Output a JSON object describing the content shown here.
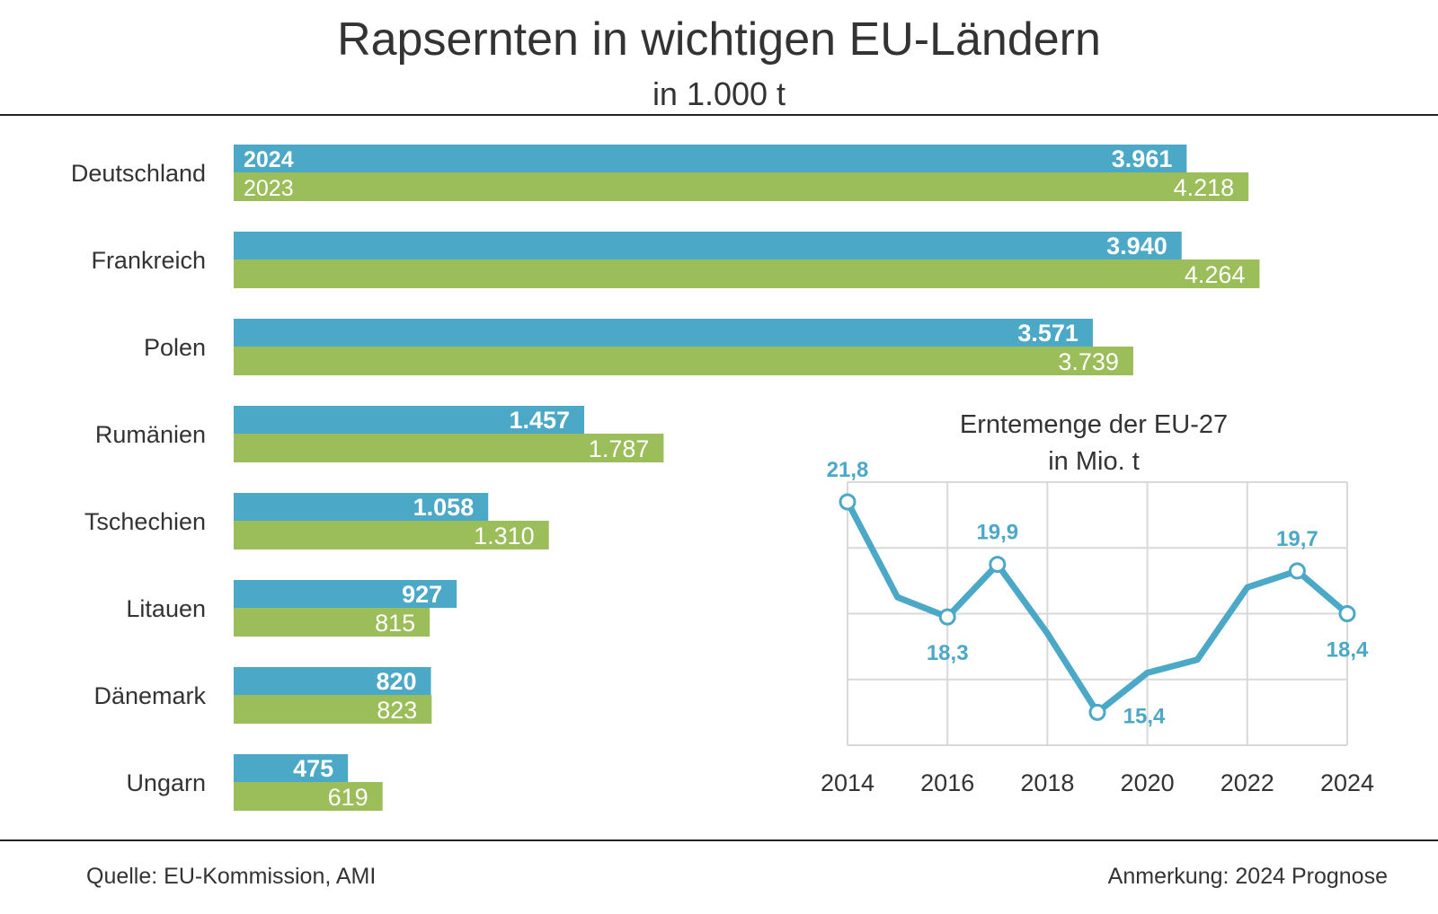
{
  "title": "Rapsernten in wichtigen EU-Ländern",
  "subtitle": "in 1.000 t",
  "source": "Quelle:  EU-Kommission, AMI",
  "note": "Anmerkung: 2024 Prognose",
  "colors": {
    "series_2024": "#4ba8c6",
    "series_2023": "#9bbd5a",
    "inset_line": "#4ba8c6",
    "grid": "#d9d9d9"
  },
  "chart_data": [
    {
      "type": "bar",
      "orientation": "horizontal",
      "categories": [
        "Deutschland",
        "Frankreich",
        "Polen",
        "Rumänien",
        "Tschechien",
        "Litauen",
        "Dänemark",
        "Ungarn"
      ],
      "series": [
        {
          "name": "2024",
          "values": [
            3961,
            3940,
            3571,
            1457,
            1058,
            927,
            820,
            475
          ],
          "labels": [
            "3.961",
            "3.940",
            "3.571",
            "1.457",
            "1.058",
            "927",
            "820",
            "475"
          ]
        },
        {
          "name": "2023",
          "values": [
            4218,
            4264,
            3739,
            1787,
            1310,
            815,
            823,
            619
          ],
          "labels": [
            "4.218",
            "4.264",
            "3.739",
            "1.787",
            "1.310",
            "815",
            "823",
            "619"
          ]
        }
      ],
      "xlim": [
        0,
        4500
      ],
      "grid": false,
      "legend": "inline"
    },
    {
      "type": "line",
      "title_lines": [
        "Erntemenge der EU-27",
        "in Mio. t"
      ],
      "x": [
        2014,
        2015,
        2016,
        2017,
        2018,
        2019,
        2020,
        2021,
        2022,
        2023,
        2024
      ],
      "values": [
        21.8,
        18.9,
        18.3,
        19.9,
        17.8,
        15.4,
        16.6,
        17.0,
        19.2,
        19.7,
        18.4
      ],
      "labeled_points": [
        {
          "x": 2014,
          "label": "21,8"
        },
        {
          "x": 2016,
          "label": "18,3"
        },
        {
          "x": 2017,
          "label": "19,9"
        },
        {
          "x": 2019,
          "label": "15,4"
        },
        {
          "x": 2023,
          "label": "19,7"
        },
        {
          "x": 2024,
          "label": "18,4"
        }
      ],
      "xticks": [
        "2014",
        "2016",
        "2018",
        "2020",
        "2022",
        "2024"
      ],
      "xlim": [
        2014,
        2024
      ],
      "ylim": [
        14.4,
        22.4
      ],
      "grid": true
    }
  ]
}
